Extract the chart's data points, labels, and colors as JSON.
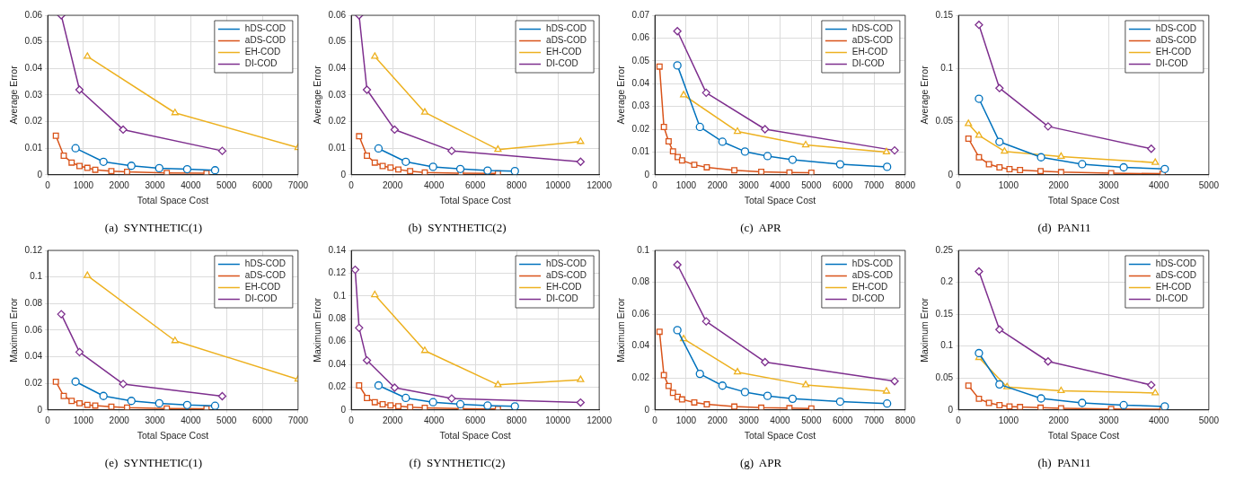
{
  "chart_data": [
    {
      "type": "line",
      "title": "(a)  SYNTHETIC(1)",
      "xlabel": "Total Space Cost",
      "ylabel": "Average Error",
      "xlim": [
        0,
        7000
      ],
      "xticks": [
        0,
        1000,
        2000,
        3000,
        4000,
        5000,
        6000,
        7000
      ],
      "ylim": [
        0,
        0.06
      ],
      "yticks": [
        0,
        0.01,
        0.02,
        0.03,
        0.04,
        0.05,
        0.06
      ],
      "grid": true,
      "legend": "top right",
      "series": [
        {
          "name": "hDS-COD",
          "color": "#0072bd",
          "marker": "circle",
          "x": [
            780,
            1560,
            2340,
            3120,
            3900,
            4680
          ],
          "values": [
            0.01,
            0.0049,
            0.0034,
            0.0025,
            0.0021,
            0.0017
          ]
        },
        {
          "name": "aDS-COD",
          "color": "#d95319",
          "marker": "square",
          "x": [
            230,
            450,
            670,
            890,
            1110,
            1330,
            1780,
            2220,
            3330,
            4440
          ],
          "values": [
            0.0147,
            0.0072,
            0.0046,
            0.0033,
            0.0026,
            0.0019,
            0.0014,
            0.0011,
            0.0007,
            0.0006
          ]
        },
        {
          "name": "EH-COD",
          "color": "#edb120",
          "marker": "triangle",
          "x": [
            1110,
            3560,
            7000
          ],
          "values": [
            0.0445,
            0.0233,
            0.0102
          ]
        },
        {
          "name": "DI-COD",
          "color": "#7e2f8e",
          "marker": "diamond",
          "x": [
            380,
            890,
            2110,
            4880
          ],
          "values": [
            0.06,
            0.032,
            0.017,
            0.009
          ]
        }
      ]
    },
    {
      "type": "line",
      "title": "(b)  SYNTHETIC(2)",
      "xlabel": "Total Space Cost",
      "ylabel": "Average Error",
      "xlim": [
        0,
        12000
      ],
      "xticks": [
        0,
        2000,
        4000,
        6000,
        8000,
        10000,
        12000
      ],
      "ylim": [
        0,
        0.06
      ],
      "yticks": [
        0,
        0.01,
        0.02,
        0.03,
        0.04,
        0.05,
        0.06
      ],
      "grid": true,
      "legend": "top right",
      "series": [
        {
          "name": "hDS-COD",
          "color": "#0072bd",
          "marker": "circle",
          "x": [
            1320,
            2640,
            3960,
            5280,
            6600,
            7920
          ],
          "values": [
            0.0099,
            0.0049,
            0.003,
            0.0022,
            0.0016,
            0.0014
          ]
        },
        {
          "name": "aDS-COD",
          "color": "#d95319",
          "marker": "square",
          "x": [
            380,
            760,
            1140,
            1520,
            1900,
            2280,
            2850,
            3560,
            5300,
            7100
          ],
          "values": [
            0.0145,
            0.0072,
            0.0046,
            0.0033,
            0.0027,
            0.002,
            0.0014,
            0.0009,
            0.0006,
            0.0005
          ]
        },
        {
          "name": "EH-COD",
          "color": "#edb120",
          "marker": "triangle",
          "x": [
            1140,
            3560,
            7100,
            11100
          ],
          "values": [
            0.0445,
            0.0235,
            0.0095,
            0.0125
          ]
        },
        {
          "name": "DI-COD",
          "color": "#7e2f8e",
          "marker": "diamond",
          "x": [
            380,
            760,
            2100,
            4860,
            11100
          ],
          "values": [
            0.06,
            0.032,
            0.017,
            0.009,
            0.0049
          ]
        }
      ]
    },
    {
      "type": "line",
      "title": "(c)  APR",
      "xlabel": "Total Space Cost",
      "ylabel": "Average Error",
      "xlim": [
        0,
        8000
      ],
      "xticks": [
        0,
        1000,
        2000,
        3000,
        4000,
        5000,
        6000,
        7000,
        8000
      ],
      "ylim": [
        0,
        0.07
      ],
      "yticks": [
        0,
        0.01,
        0.02,
        0.03,
        0.04,
        0.05,
        0.06,
        0.07
      ],
      "grid": true,
      "legend": "top right",
      "series": [
        {
          "name": "hDS-COD",
          "color": "#0072bd",
          "marker": "circle",
          "x": [
            720,
            1440,
            2160,
            2880,
            3600,
            4400,
            5920,
            7420
          ],
          "values": [
            0.048,
            0.021,
            0.0145,
            0.0102,
            0.0082,
            0.0066,
            0.0046,
            0.0035
          ]
        },
        {
          "name": "aDS-COD",
          "color": "#d95319",
          "marker": "square",
          "x": [
            150,
            290,
            440,
            580,
            730,
            870,
            1260,
            1660,
            2540,
            3400,
            4300,
            5000
          ],
          "values": [
            0.0475,
            0.021,
            0.0147,
            0.0103,
            0.0078,
            0.0063,
            0.0044,
            0.0033,
            0.002,
            0.0013,
            0.001,
            0.0009
          ]
        },
        {
          "name": "EH-COD",
          "color": "#edb120",
          "marker": "triangle",
          "x": [
            920,
            2640,
            4820,
            7400
          ],
          "values": [
            0.035,
            0.019,
            0.0131,
            0.01
          ]
        },
        {
          "name": "DI-COD",
          "color": "#7e2f8e",
          "marker": "diamond",
          "x": [
            720,
            1640,
            3520,
            7660
          ],
          "values": [
            0.063,
            0.036,
            0.02,
            0.0107
          ]
        }
      ]
    },
    {
      "type": "line",
      "title": "(d)  PAN11",
      "xlabel": "Total Space Cost",
      "ylabel": "Average Error",
      "xlim": [
        0,
        5000
      ],
      "xticks": [
        0,
        1000,
        2000,
        3000,
        4000,
        5000
      ],
      "ylim": [
        0,
        0.15
      ],
      "yticks": [
        0,
        0.05,
        0.1,
        0.15
      ],
      "grid": true,
      "legend": "top right",
      "series": [
        {
          "name": "hDS-COD",
          "color": "#0072bd",
          "marker": "circle",
          "x": [
            410,
            820,
            1650,
            2470,
            3300,
            4120
          ],
          "values": [
            0.0715,
            0.031,
            0.0165,
            0.01,
            0.007,
            0.0055
          ]
        },
        {
          "name": "aDS-COD",
          "color": "#d95319",
          "marker": "square",
          "x": [
            200,
            410,
            610,
            820,
            1020,
            1230,
            1640,
            2050,
            3050,
            4080
          ],
          "values": [
            0.034,
            0.0165,
            0.01,
            0.007,
            0.0053,
            0.0045,
            0.0035,
            0.0025,
            0.0015,
            0.001
          ]
        },
        {
          "name": "EH-COD",
          "color": "#edb120",
          "marker": "triangle",
          "x": [
            200,
            410,
            920,
            2050,
            3930
          ],
          "values": [
            0.048,
            0.037,
            0.022,
            0.0172,
            0.0115
          ]
        },
        {
          "name": "DI-COD",
          "color": "#7e2f8e",
          "marker": "diamond",
          "x": [
            410,
            820,
            1790,
            3850
          ],
          "values": [
            0.141,
            0.0815,
            0.0455,
            0.0245
          ]
        }
      ]
    },
    {
      "type": "line",
      "title": "(e)  SYNTHETIC(1)",
      "xlabel": "Total Space Cost",
      "ylabel": "Maximum Error",
      "xlim": [
        0,
        7000
      ],
      "xticks": [
        0,
        1000,
        2000,
        3000,
        4000,
        5000,
        6000,
        7000
      ],
      "ylim": [
        0,
        0.12
      ],
      "yticks": [
        0,
        0.02,
        0.04,
        0.06,
        0.08,
        0.1,
        0.12
      ],
      "grid": true,
      "legend": "top right",
      "series": [
        {
          "name": "hDS-COD",
          "color": "#0072bd",
          "marker": "circle",
          "x": [
            780,
            1560,
            2340,
            3120,
            3900,
            4680
          ],
          "values": [
            0.0213,
            0.0105,
            0.0068,
            0.005,
            0.0037,
            0.0031
          ]
        },
        {
          "name": "aDS-COD",
          "color": "#d95319",
          "marker": "square",
          "x": [
            230,
            450,
            670,
            890,
            1110,
            1330,
            1780,
            2220,
            3330,
            4440
          ],
          "values": [
            0.0212,
            0.0105,
            0.0068,
            0.005,
            0.0038,
            0.0033,
            0.0024,
            0.0018,
            0.0011,
            0.0009
          ]
        },
        {
          "name": "EH-COD",
          "color": "#edb120",
          "marker": "triangle",
          "x": [
            1110,
            3560,
            7000
          ],
          "values": [
            0.101,
            0.052,
            0.023
          ]
        },
        {
          "name": "DI-COD",
          "color": "#7e2f8e",
          "marker": "diamond",
          "x": [
            380,
            890,
            2110,
            4880
          ],
          "values": [
            0.072,
            0.0435,
            0.0195,
            0.0103
          ]
        }
      ]
    },
    {
      "type": "line",
      "title": "(f)  SYNTHETIC(2)",
      "xlabel": "Total Space Cost",
      "ylabel": "Maximum Error",
      "xlim": [
        0,
        12000
      ],
      "xticks": [
        0,
        2000,
        4000,
        6000,
        8000,
        10000,
        12000
      ],
      "ylim": [
        0,
        0.14
      ],
      "yticks": [
        0,
        0.02,
        0.04,
        0.06,
        0.08,
        0.1,
        0.12,
        0.14
      ],
      "grid": true,
      "legend": "top right",
      "series": [
        {
          "name": "hDS-COD",
          "color": "#0072bd",
          "marker": "circle",
          "x": [
            1320,
            2640,
            3960,
            5280,
            6600,
            7920
          ],
          "values": [
            0.0215,
            0.0105,
            0.0068,
            0.005,
            0.0038,
            0.0031
          ]
        },
        {
          "name": "aDS-COD",
          "color": "#d95319",
          "marker": "square",
          "x": [
            380,
            760,
            1140,
            1520,
            1900,
            2280,
            2850,
            3560,
            5300,
            7100
          ],
          "values": [
            0.0215,
            0.0105,
            0.0068,
            0.005,
            0.004,
            0.0033,
            0.0024,
            0.0018,
            0.0011,
            0.0008
          ]
        },
        {
          "name": "EH-COD",
          "color": "#edb120",
          "marker": "triangle",
          "x": [
            1140,
            3560,
            7100,
            11100
          ],
          "values": [
            0.101,
            0.052,
            0.022,
            0.0265
          ]
        },
        {
          "name": "DI-COD",
          "color": "#7e2f8e",
          "marker": "diamond",
          "x": [
            190,
            380,
            760,
            2100,
            4860,
            11100
          ],
          "values": [
            0.123,
            0.072,
            0.0435,
            0.0195,
            0.01,
            0.0065
          ]
        }
      ]
    },
    {
      "type": "line",
      "title": "(g)  APR",
      "xlabel": "Total Space Cost",
      "ylabel": "Maximum Error",
      "xlim": [
        0,
        8000
      ],
      "xticks": [
        0,
        1000,
        2000,
        3000,
        4000,
        5000,
        6000,
        7000,
        8000
      ],
      "ylim": [
        0,
        0.1
      ],
      "yticks": [
        0,
        0.02,
        0.04,
        0.06,
        0.08,
        0.1
      ],
      "grid": true,
      "legend": "top right",
      "series": [
        {
          "name": "hDS-COD",
          "color": "#0072bd",
          "marker": "circle",
          "x": [
            720,
            1440,
            2160,
            2880,
            3600,
            4400,
            5920,
            7420
          ],
          "values": [
            0.05,
            0.0226,
            0.0152,
            0.0112,
            0.0088,
            0.007,
            0.0052,
            0.004
          ]
        },
        {
          "name": "aDS-COD",
          "color": "#d95319",
          "marker": "square",
          "x": [
            150,
            290,
            440,
            580,
            730,
            870,
            1260,
            1660,
            2540,
            3400,
            4300,
            5000
          ],
          "values": [
            0.049,
            0.0218,
            0.015,
            0.0107,
            0.0082,
            0.0066,
            0.0047,
            0.0035,
            0.0021,
            0.0014,
            0.0011,
            0.0009
          ]
        },
        {
          "name": "EH-COD",
          "color": "#edb120",
          "marker": "triangle",
          "x": [
            920,
            2640,
            4820,
            7400
          ],
          "values": [
            0.0445,
            0.0237,
            0.0157,
            0.0117
          ]
        },
        {
          "name": "DI-COD",
          "color": "#7e2f8e",
          "marker": "diamond",
          "x": [
            720,
            1640,
            3520,
            7660
          ],
          "values": [
            0.091,
            0.0555,
            0.03,
            0.018
          ]
        }
      ]
    },
    {
      "type": "line",
      "title": "(h)  PAN11",
      "xlabel": "Total Space Cost",
      "ylabel": "Maximum Error",
      "xlim": [
        0,
        5000
      ],
      "xticks": [
        0,
        1000,
        2000,
        3000,
        4000,
        5000
      ],
      "ylim": [
        0,
        0.25
      ],
      "yticks": [
        0,
        0.05,
        0.1,
        0.15,
        0.2,
        0.25
      ],
      "grid": true,
      "legend": "top right",
      "series": [
        {
          "name": "hDS-COD",
          "color": "#0072bd",
          "marker": "circle",
          "x": [
            410,
            820,
            1650,
            2470,
            3300,
            4120
          ],
          "values": [
            0.089,
            0.04,
            0.018,
            0.011,
            0.0075,
            0.0055
          ]
        },
        {
          "name": "aDS-COD",
          "color": "#d95319",
          "marker": "square",
          "x": [
            200,
            410,
            610,
            820,
            1020,
            1230,
            1640,
            2050,
            3050,
            4080
          ],
          "values": [
            0.038,
            0.0175,
            0.011,
            0.0075,
            0.0055,
            0.0045,
            0.0035,
            0.0025,
            0.0015,
            0.001
          ]
        },
        {
          "name": "EH-COD",
          "color": "#edb120",
          "marker": "triangle",
          "x": [
            410,
            970,
            2050,
            3930
          ],
          "values": [
            0.082,
            0.036,
            0.03,
            0.0265
          ]
        },
        {
          "name": "DI-COD",
          "color": "#7e2f8e",
          "marker": "diamond",
          "x": [
            410,
            820,
            1790,
            3850
          ],
          "values": [
            0.217,
            0.126,
            0.076,
            0.039
          ]
        }
      ]
    }
  ]
}
